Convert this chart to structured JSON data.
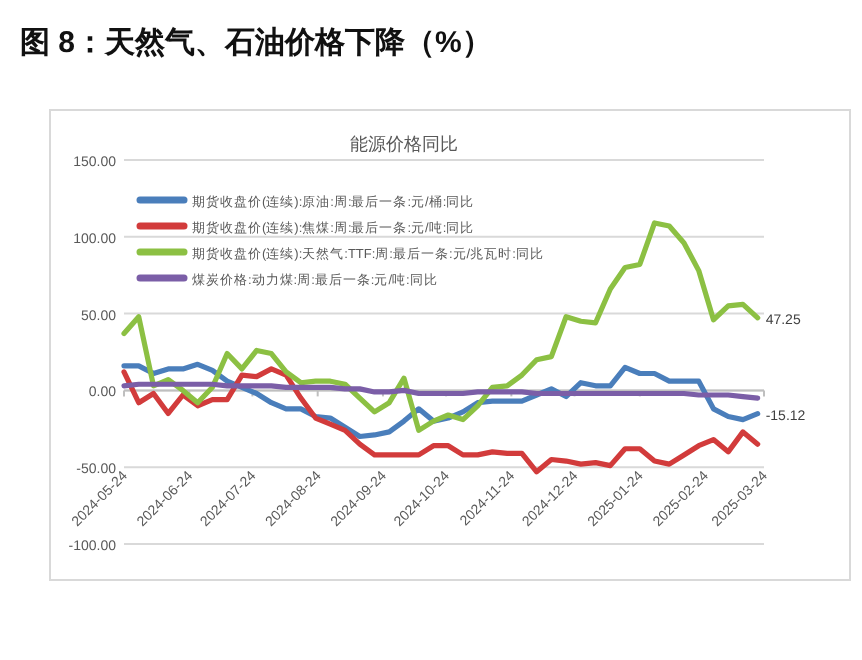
{
  "chart_data": {
    "type": "line",
    "title": "图 8：天然气、石油价格下降（%）",
    "subtitle": "能源价格同比",
    "x": [
      "2024-05-24",
      "2024-05-31",
      "2024-06-07",
      "2024-06-14",
      "2024-06-21",
      "2024-06-28",
      "2024-07-05",
      "2024-07-12",
      "2024-07-19",
      "2024-07-26",
      "2024-08-02",
      "2024-08-09",
      "2024-08-16",
      "2024-08-23",
      "2024-08-30",
      "2024-09-06",
      "2024-09-13",
      "2024-09-20",
      "2024-09-27",
      "2024-10-04",
      "2024-10-11",
      "2024-10-18",
      "2024-10-25",
      "2024-11-01",
      "2024-11-08",
      "2024-11-15",
      "2024-11-22",
      "2024-11-29",
      "2024-12-06",
      "2024-12-13",
      "2024-12-20",
      "2024-12-27",
      "2025-01-03",
      "2025-01-10",
      "2025-01-17",
      "2025-01-24",
      "2025-01-31",
      "2025-02-07",
      "2025-02-14",
      "2025-02-21",
      "2025-02-28",
      "2025-03-07",
      "2025-03-14",
      "2025-03-21"
    ],
    "series": [
      {
        "name": "期货收盘价(连续):原油:周:最后一条:元/桶:同比",
        "color": "#4a7ebb",
        "values": [
          16,
          16,
          11,
          14,
          14,
          17,
          13,
          6,
          2,
          -2,
          -8,
          -12,
          -12,
          -17,
          -18,
          -24,
          -30,
          -29,
          -27,
          -20,
          -12,
          -20,
          -18,
          -14,
          -8,
          -7,
          -7,
          -7,
          -3,
          1,
          -4,
          5,
          3,
          3,
          15,
          11,
          11,
          6,
          6,
          6,
          -12,
          -17,
          -19,
          -15.12
        ],
        "value_labels": [
          null,
          null,
          null,
          null,
          null,
          null,
          null,
          null,
          null,
          null,
          null,
          null,
          null,
          null,
          null,
          null,
          null,
          null,
          null,
          null,
          null,
          null,
          null,
          null,
          null,
          null,
          null,
          null,
          null,
          null,
          null,
          null,
          null,
          null,
          null,
          null,
          null,
          null,
          null,
          null,
          null,
          null,
          null,
          "-15.12"
        ]
      },
      {
        "name": "期货收盘价(连续):焦煤:周:最后一条:元/吨:同比",
        "color": "#d23b3b",
        "values": [
          12,
          -8,
          -2,
          -15,
          -3,
          -10,
          -6,
          -6,
          10,
          9,
          14,
          10,
          -5,
          -18,
          -22,
          -26,
          -35,
          -42,
          -42,
          -42,
          -42,
          -36,
          -36,
          -42,
          -42,
          -40,
          -41,
          -41,
          -53,
          -45,
          -46,
          -48,
          -47,
          -49,
          -38,
          -38,
          -46,
          -48,
          -42,
          -36,
          -32,
          -40,
          -27,
          -35
        ]
      },
      {
        "name": "期货收盘价(连续):天然气:TTF:周:最后一条:元/兆瓦时:同比",
        "color": "#8cc043",
        "values": [
          37,
          48,
          3,
          7,
          0,
          -8,
          2,
          24,
          14,
          26,
          24,
          12,
          5,
          6,
          6,
          4,
          -5,
          -14,
          -8,
          8,
          -26,
          -20,
          -16,
          -19,
          -10,
          2,
          3,
          10,
          20,
          22,
          48,
          45,
          44,
          66,
          80,
          82,
          109,
          107,
          96,
          78,
          46,
          55,
          56,
          47.25
        ],
        "value_labels": [
          null,
          null,
          null,
          null,
          null,
          null,
          null,
          null,
          null,
          null,
          null,
          null,
          null,
          null,
          null,
          null,
          null,
          null,
          null,
          null,
          null,
          null,
          null,
          null,
          null,
          null,
          null,
          null,
          null,
          null,
          null,
          null,
          null,
          null,
          null,
          null,
          null,
          null,
          null,
          null,
          null,
          null,
          null,
          "47.25"
        ]
      },
      {
        "name": "煤炭价格:动力煤:周:最后一条:元/吨:同比",
        "color": "#7b5ea7",
        "values": [
          3,
          4,
          4,
          4,
          4,
          4,
          4,
          3,
          3,
          3,
          3,
          2,
          2,
          2,
          2,
          1,
          1,
          -1,
          -1,
          0,
          -2,
          -2,
          -2,
          -2,
          -1,
          -1,
          -1,
          -1,
          -2,
          -2,
          -2,
          -2,
          -2,
          -2,
          -2,
          -2,
          -2,
          -2,
          -2,
          -3,
          -3,
          -3,
          -4,
          -5
        ]
      }
    ],
    "ylim": [
      -100,
      150
    ],
    "yticks": [
      {
        "value": -100,
        "label": "-100.00"
      },
      {
        "value": -50,
        "label": "-50.00"
      },
      {
        "value": 0,
        "label": "0.00"
      },
      {
        "value": 50,
        "label": "50.00"
      },
      {
        "value": 100,
        "label": "100.00"
      },
      {
        "value": 150,
        "label": "150.00"
      }
    ],
    "xlim": [
      "2024-05-24",
      "2025-03-24"
    ],
    "xticks": [
      "2024-05-24",
      "2024-06-24",
      "2024-07-24",
      "2024-08-24",
      "2024-09-24",
      "2024-10-24",
      "2024-11-24",
      "2024-12-24",
      "2025-01-24",
      "2025-02-24",
      "2025-03-24"
    ],
    "grid": "y",
    "legend": "top left",
    "marker": "none",
    "line_style": "solid"
  }
}
